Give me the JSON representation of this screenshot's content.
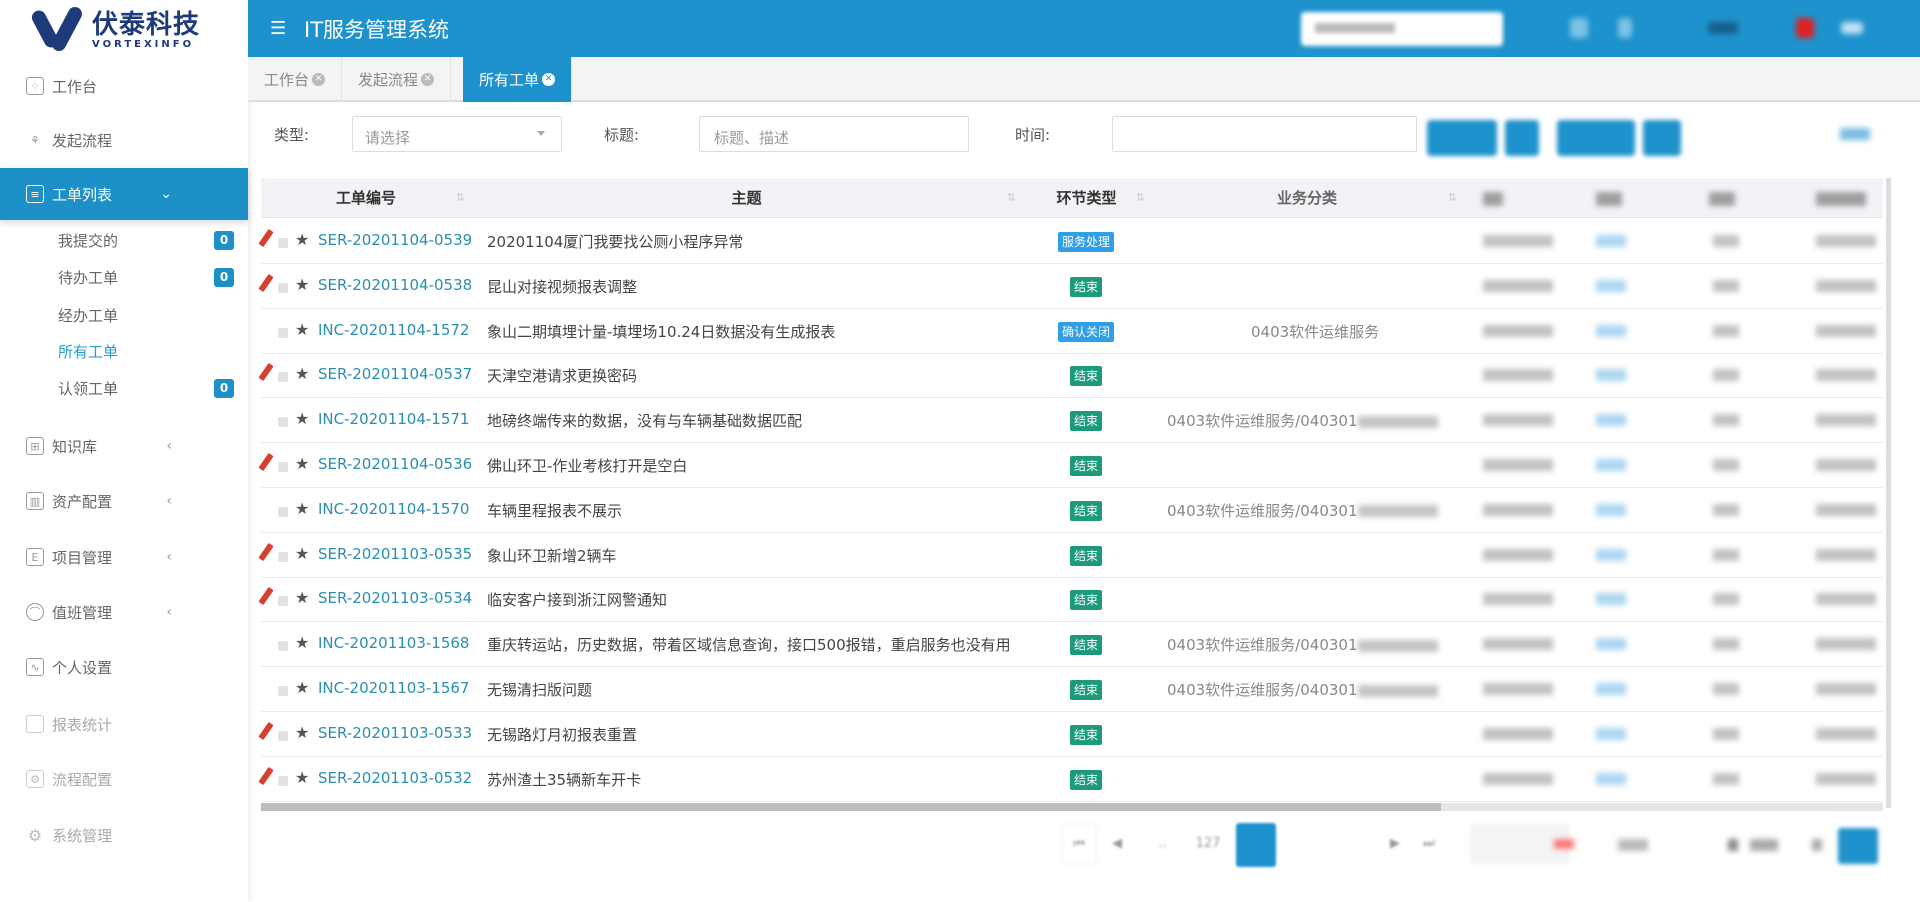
{
  "brand": {
    "name_cn": "伏泰科技",
    "name_en": "VORTEXINFO"
  },
  "header": {
    "title": "IT服务管理系统",
    "menu_icon": "menu-fold-icon"
  },
  "colors": {
    "primary": "#1e92cc",
    "badge_blue": "#2f9fe8",
    "badge_green": "#1b9a7c",
    "link": "#2a8fad",
    "flag": "#d64030"
  },
  "sidebar": {
    "items": [
      {
        "label": "工作台",
        "icon": "grid-icon"
      },
      {
        "label": "发起流程",
        "icon": "flow-icon"
      },
      {
        "label": "工单列表",
        "icon": "list-icon",
        "expanded": true
      },
      {
        "label": "知识库",
        "icon": "book-icon"
      },
      {
        "label": "资产配置",
        "icon": "chart-icon"
      },
      {
        "label": "项目管理",
        "icon": "project-icon"
      },
      {
        "label": "值班管理",
        "icon": "user-icon"
      },
      {
        "label": "个人设置",
        "icon": "pulse-icon"
      },
      {
        "label": "报表统计",
        "icon": "report-icon"
      },
      {
        "label": "流程配置",
        "icon": "flow-config-icon"
      },
      {
        "label": "系统管理",
        "icon": "gear-icon"
      }
    ],
    "sub_items": [
      {
        "label": "我提交的",
        "count": "0"
      },
      {
        "label": "待办工单",
        "count": "0"
      },
      {
        "label": "经办工单"
      },
      {
        "label": "所有工单",
        "current": true
      },
      {
        "label": "认领工单",
        "count": "0"
      }
    ]
  },
  "tabs": [
    {
      "label": "工作台"
    },
    {
      "label": "发起流程"
    },
    {
      "label": "所有工单",
      "active": true
    }
  ],
  "filters": {
    "type_label": "类型:",
    "type_placeholder": "请选择",
    "title_label": "标题:",
    "title_placeholder": "标题、描述",
    "time_label": "时间:"
  },
  "table": {
    "columns": [
      "工单编号",
      "主题",
      "环节类型",
      "业务分类"
    ],
    "rows": [
      {
        "id": "SER-20201104-0539",
        "subject": "20201104厦门我要找公厕小程序异常",
        "stage": "服务处理",
        "stage_color": "blue",
        "category": "",
        "flag": true
      },
      {
        "id": "SER-20201104-0538",
        "subject": "昆山对接视频报表调整",
        "stage": "结束",
        "stage_color": "green",
        "category": "",
        "flag": true
      },
      {
        "id": "INC-20201104-1572",
        "subject": "象山二期填埋计量-填埋场10.24日数据没有生成报表",
        "stage": "确认关闭",
        "stage_color": "blue",
        "category": "0403软件运维服务",
        "flag": false
      },
      {
        "id": "SER-20201104-0537",
        "subject": "天津空港请求更换密码",
        "stage": "结束",
        "stage_color": "green",
        "category": "",
        "flag": true
      },
      {
        "id": "INC-20201104-1571",
        "subject": "地磅终端传来的数据，没有与车辆基础数据匹配",
        "stage": "结束",
        "stage_color": "green",
        "category": "0403软件运维服务/040301",
        "flag": false
      },
      {
        "id": "SER-20201104-0536",
        "subject": "佛山环卫-作业考核打开是空白",
        "stage": "结束",
        "stage_color": "green",
        "category": "",
        "flag": true
      },
      {
        "id": "INC-20201104-1570",
        "subject": "车辆里程报表不展示",
        "stage": "结束",
        "stage_color": "green",
        "category": "0403软件运维服务/040301",
        "flag": false
      },
      {
        "id": "SER-20201103-0535",
        "subject": "象山环卫新增2辆车",
        "stage": "结束",
        "stage_color": "green",
        "category": "",
        "flag": true
      },
      {
        "id": "SER-20201103-0534",
        "subject": "临安客户接到浙江网警通知",
        "stage": "结束",
        "stage_color": "green",
        "category": "",
        "flag": true
      },
      {
        "id": "INC-20201103-1568",
        "subject": "重庆转运站，历史数据，带着区域信息查询，接口500报错，重启服务也没有用",
        "stage": "结束",
        "stage_color": "green",
        "category": "0403软件运维服务/040301",
        "flag": false
      },
      {
        "id": "INC-20201103-1567",
        "subject": "无锡清扫版问题",
        "stage": "结束",
        "stage_color": "green",
        "category": "0403软件运维服务/040301",
        "flag": false
      },
      {
        "id": "SER-20201103-0533",
        "subject": "无锡路灯月初报表重置",
        "stage": "结束",
        "stage_color": "green",
        "category": "",
        "flag": true
      },
      {
        "id": "SER-20201103-0532",
        "subject": "苏州渣土35辆新车开卡",
        "stage": "结束",
        "stage_color": "green",
        "category": "",
        "flag": true
      }
    ]
  },
  "pagination": {
    "ellipsis": "..",
    "page_before": "127"
  }
}
